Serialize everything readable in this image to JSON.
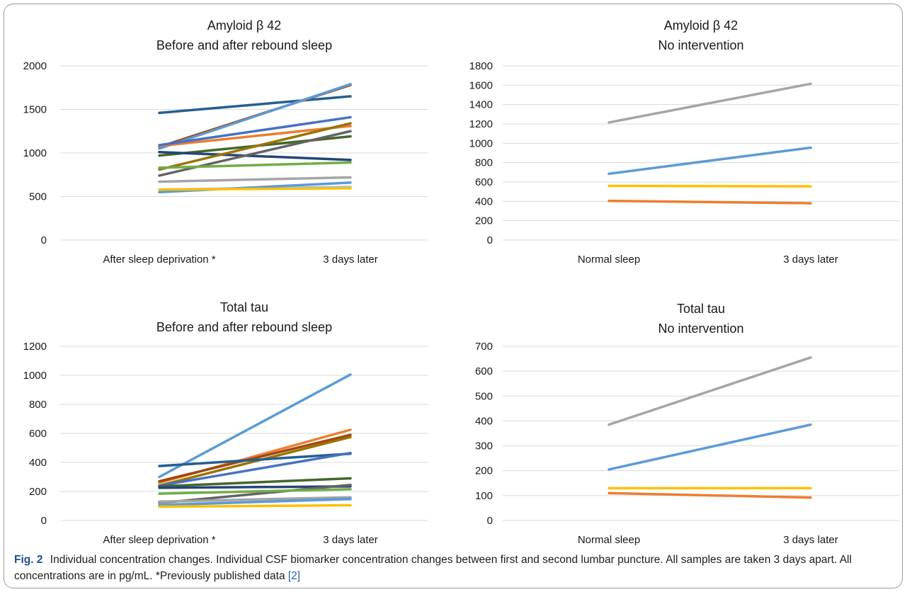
{
  "chart_data": [
    {
      "type": "line",
      "title_lines": [
        "Amyloid β 42",
        "Before and after rebound sleep"
      ],
      "categories": [
        "After sleep deprivation *",
        "3 days later"
      ],
      "ylim": [
        0,
        2000
      ],
      "yticks": [
        0,
        500,
        1000,
        1500,
        2000
      ],
      "grid": true,
      "series": [
        {
          "color": "#255e91",
          "values": [
            1460,
            1650
          ]
        },
        {
          "color": "#9e480e",
          "values": [
            1070,
            1780
          ]
        },
        {
          "color": "#5b9bd5",
          "values": [
            1050,
            1790
          ]
        },
        {
          "color": "#ed7d31",
          "values": [
            1080,
            1310
          ]
        },
        {
          "color": "#4472c4",
          "values": [
            1090,
            1410
          ]
        },
        {
          "color": "#43682b",
          "values": [
            970,
            1190
          ]
        },
        {
          "color": "#264478",
          "values": [
            1010,
            920
          ]
        },
        {
          "color": "#997300",
          "values": [
            810,
            1340
          ]
        },
        {
          "color": "#636363",
          "values": [
            740,
            1250
          ]
        },
        {
          "color": "#70ad47",
          "values": [
            830,
            890
          ]
        },
        {
          "color": "#a5a5a5",
          "values": [
            670,
            720
          ]
        },
        {
          "color": "#9dc3e6",
          "values": [
            580,
            610
          ]
        },
        {
          "color": "#5b9bd5",
          "values": [
            550,
            660
          ]
        },
        {
          "color": "#ffc000",
          "values": [
            580,
            595
          ]
        }
      ]
    },
    {
      "type": "line",
      "title_lines": [
        "Amyloid β 42",
        "No intervention"
      ],
      "categories": [
        "Normal sleep",
        "3 days later"
      ],
      "ylim": [
        0,
        1800
      ],
      "yticks": [
        0,
        200,
        400,
        600,
        800,
        1000,
        1200,
        1400,
        1600,
        1800
      ],
      "grid": true,
      "series": [
        {
          "color": "#a5a5a5",
          "values": [
            1215,
            1615
          ]
        },
        {
          "color": "#5b9bd5",
          "values": [
            685,
            955
          ]
        },
        {
          "color": "#ffc000",
          "values": [
            560,
            555
          ]
        },
        {
          "color": "#ed7d31",
          "values": [
            405,
            380
          ]
        }
      ]
    },
    {
      "type": "line",
      "title_lines": [
        "Total tau",
        "Before and after rebound sleep"
      ],
      "categories": [
        "After sleep deprivation *",
        "3 days later"
      ],
      "ylim": [
        0,
        1200
      ],
      "yticks": [
        0,
        200,
        400,
        600,
        800,
        1000,
        1200
      ],
      "grid": true,
      "series": [
        {
          "color": "#5b9bd5",
          "values": [
            300,
            1005
          ]
        },
        {
          "color": "#ed7d31",
          "values": [
            260,
            625
          ]
        },
        {
          "color": "#9e480e",
          "values": [
            270,
            590
          ]
        },
        {
          "color": "#997300",
          "values": [
            240,
            575
          ]
        },
        {
          "color": "#255e91",
          "values": [
            375,
            460
          ]
        },
        {
          "color": "#4472c4",
          "values": [
            240,
            465
          ]
        },
        {
          "color": "#43682b",
          "values": [
            235,
            290
          ]
        },
        {
          "color": "#264478",
          "values": [
            225,
            235
          ]
        },
        {
          "color": "#636363",
          "values": [
            120,
            245
          ]
        },
        {
          "color": "#70ad47",
          "values": [
            185,
            215
          ]
        },
        {
          "color": "#a5a5a5",
          "values": [
            130,
            160
          ]
        },
        {
          "color": "#9dc3e6",
          "values": [
            110,
            145
          ]
        },
        {
          "color": "#5b9bd5",
          "values": [
            105,
            150
          ]
        },
        {
          "color": "#ffc000",
          "values": [
            95,
            105
          ]
        }
      ]
    },
    {
      "type": "line",
      "title_lines": [
        "Total tau",
        "No intervention"
      ],
      "categories": [
        "Normal sleep",
        "3 days later"
      ],
      "ylim": [
        0,
        700
      ],
      "yticks": [
        0,
        100,
        200,
        300,
        400,
        500,
        600,
        700
      ],
      "grid": true,
      "series": [
        {
          "color": "#a5a5a5",
          "values": [
            385,
            655
          ]
        },
        {
          "color": "#5b9bd5",
          "values": [
            205,
            385
          ]
        },
        {
          "color": "#ffc000",
          "values": [
            130,
            130
          ]
        },
        {
          "color": "#ed7d31",
          "values": [
            110,
            92
          ]
        }
      ]
    }
  ],
  "caption": {
    "fig_label": "Fig. 2",
    "text": "Individual concentration changes. Individual CSF biomarker concentration changes between first and second lumbar puncture. All samples are taken 3 days apart. All concentrations are in pg/mL. *Previously published data ",
    "ref": "[2]"
  }
}
